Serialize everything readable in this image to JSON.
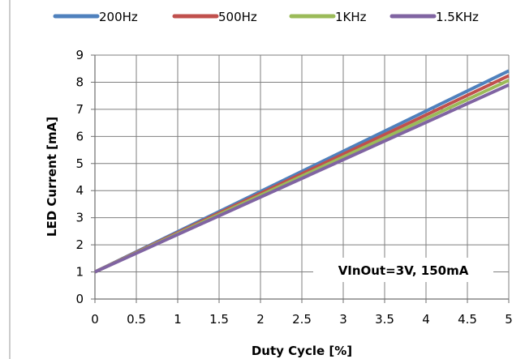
{
  "chart_data": {
    "type": "line",
    "xlabel": "Duty Cycle [%]",
    "ylabel": "LED Current [mA]",
    "xlim": [
      0,
      5
    ],
    "ylim": [
      0,
      9
    ],
    "x_ticks": [
      "0",
      "0.5",
      "1",
      "1.5",
      "2",
      "2.5",
      "3",
      "3.5",
      "4",
      "4.5",
      "5"
    ],
    "y_ticks": [
      "0",
      "1",
      "2",
      "3",
      "4",
      "5",
      "6",
      "7",
      "8",
      "9"
    ],
    "grid": true,
    "legend_position": "top",
    "annotation": "VInOut=3V, 150mA",
    "series": [
      {
        "name": "200Hz",
        "color": "#4f81bd",
        "x": [
          0,
          5
        ],
        "y": [
          1.0,
          8.42
        ]
      },
      {
        "name": "500Hz",
        "color": "#c0504d",
        "x": [
          0,
          5
        ],
        "y": [
          1.0,
          8.24
        ]
      },
      {
        "name": "1KHz",
        "color": "#9bbb59",
        "x": [
          0,
          5
        ],
        "y": [
          1.0,
          8.07
        ]
      },
      {
        "name": "1.5KHz",
        "color": "#8064a2",
        "x": [
          0,
          5
        ],
        "y": [
          1.0,
          7.9
        ]
      }
    ]
  }
}
